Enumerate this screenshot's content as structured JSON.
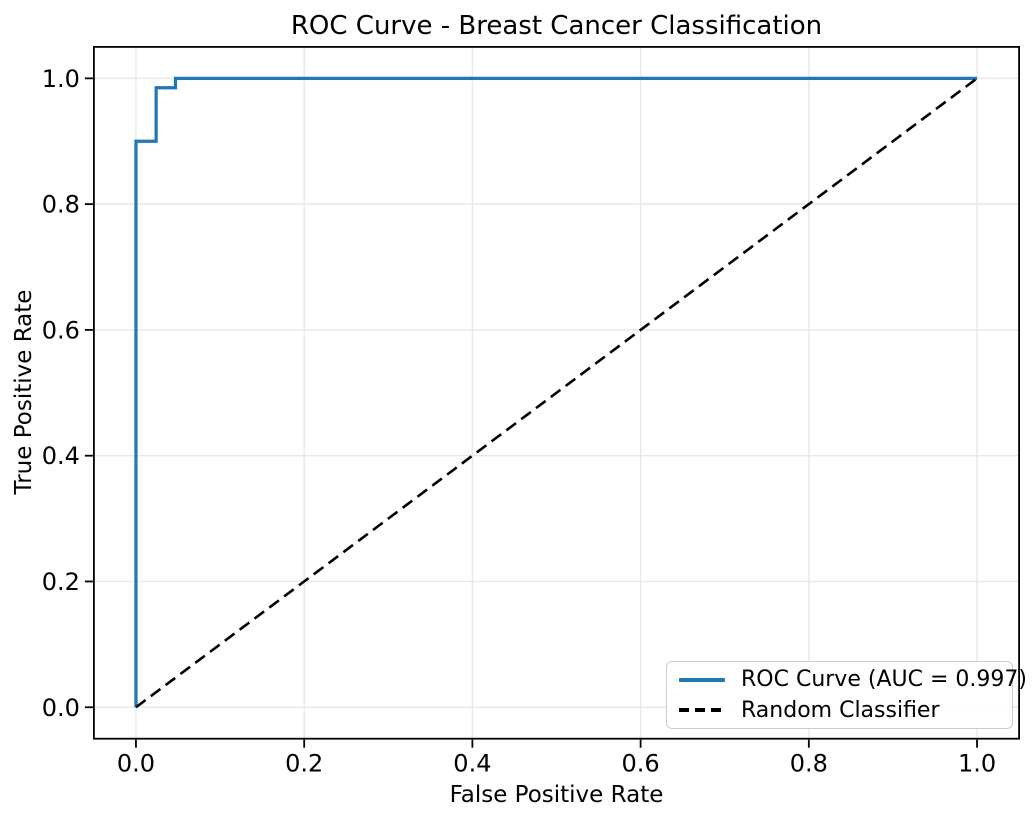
{
  "chart_data": {
    "type": "line",
    "title": "ROC Curve - Breast Cancer Classification",
    "xlabel": "False Positive Rate",
    "ylabel": "True Positive Rate",
    "xlim": [
      -0.05,
      1.05
    ],
    "ylim": [
      -0.05,
      1.05
    ],
    "x_ticks": [
      0.0,
      0.2,
      0.4,
      0.6,
      0.8,
      1.0
    ],
    "y_ticks": [
      0.0,
      0.2,
      0.4,
      0.6,
      0.8,
      1.0
    ],
    "x_tick_labels": [
      "0.0",
      "0.2",
      "0.4",
      "0.6",
      "0.8",
      "1.0"
    ],
    "y_tick_labels": [
      "0.0",
      "0.2",
      "0.4",
      "0.6",
      "0.8",
      "1.0"
    ],
    "grid": true,
    "legend_position": "lower right",
    "auc": 0.997,
    "series": [
      {
        "name": "ROC Curve (AUC = 0.997)",
        "color": "#1f77b4",
        "style": "solid",
        "line_width": 3.2,
        "x": [
          0.0,
          0.0,
          0.024,
          0.024,
          0.047,
          0.047,
          1.0
        ],
        "y": [
          0.0,
          0.9,
          0.9,
          0.985,
          0.985,
          1.0,
          1.0
        ]
      },
      {
        "name": "Random Classifier",
        "color": "#000000",
        "style": "dashed",
        "line_width": 2.6,
        "x": [
          0.0,
          1.0
        ],
        "y": [
          0.0,
          1.0
        ]
      }
    ]
  },
  "colors": {
    "roc_line": "#1f77b4",
    "random_line": "#000000",
    "grid_line": "#e8e8e8",
    "spine": "#000000",
    "legend_border": "#cccccc",
    "background": "#ffffff"
  }
}
